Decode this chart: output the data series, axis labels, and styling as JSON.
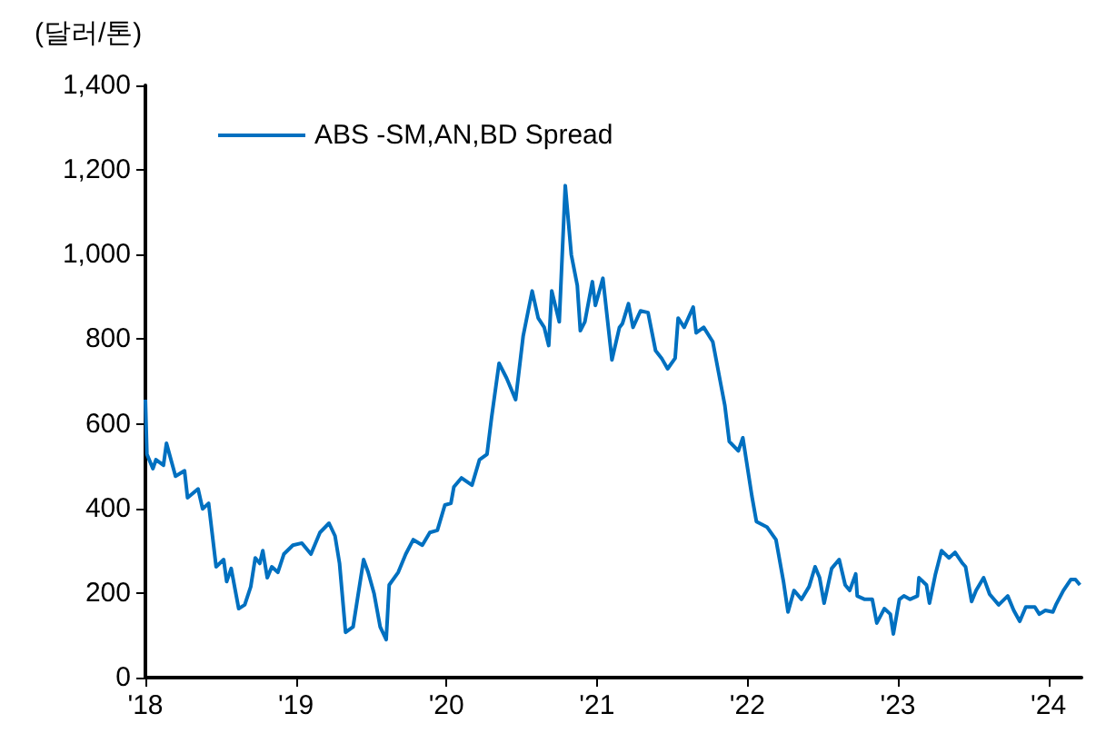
{
  "chart_data": {
    "type": "line",
    "ylabel": "(달러/톤)",
    "legend": "top left",
    "grid": false,
    "marker": "none",
    "line_style": "solid",
    "xlim": [
      2018,
      2024.22
    ],
    "xticks": [
      {
        "value": 2018,
        "label": "'18"
      },
      {
        "value": 2019,
        "label": "'19"
      },
      {
        "value": 2020,
        "label": "'20"
      },
      {
        "value": 2021,
        "label": "'21"
      },
      {
        "value": 2022,
        "label": "'22"
      },
      {
        "value": 2023,
        "label": "'23"
      },
      {
        "value": 2024,
        "label": "'24"
      }
    ],
    "ylim": [
      0,
      1400
    ],
    "yticks": [
      0,
      200,
      400,
      600,
      800,
      {
        "value": 1000,
        "label": "1,000"
      },
      {
        "value": 1200,
        "label": "1,200"
      },
      {
        "value": 1400,
        "label": "1,400"
      }
    ],
    "x": [
      2018.0,
      2018.01,
      2018.05,
      2018.07,
      2018.12,
      2018.14,
      2018.2,
      2018.26,
      2018.28,
      2018.35,
      2018.38,
      2018.42,
      2018.47,
      2018.52,
      2018.54,
      2018.57,
      2018.62,
      2018.66,
      2018.7,
      2018.73,
      2018.76,
      2018.78,
      2018.81,
      2018.84,
      2018.88,
      2018.92,
      2018.98,
      2019.04,
      2019.1,
      2019.16,
      2019.22,
      2019.26,
      2019.29,
      2019.33,
      2019.38,
      2019.45,
      2019.48,
      2019.52,
      2019.56,
      2019.6,
      2019.62,
      2019.68,
      2019.73,
      2019.78,
      2019.84,
      2019.89,
      2019.94,
      2019.99,
      2020.03,
      2020.05,
      2020.1,
      2020.17,
      2020.22,
      2020.27,
      2020.3,
      2020.35,
      2020.4,
      2020.46,
      2020.51,
      2020.57,
      2020.61,
      2020.65,
      2020.68,
      2020.7,
      2020.75,
      2020.79,
      2020.83,
      2020.87,
      2020.89,
      2020.92,
      2020.97,
      2020.99,
      2021.04,
      2021.1,
      2021.15,
      2021.17,
      2021.21,
      2021.24,
      2021.29,
      2021.34,
      2021.39,
      2021.43,
      2021.47,
      2021.52,
      2021.54,
      2021.58,
      2021.64,
      2021.66,
      2021.71,
      2021.77,
      2021.82,
      2021.85,
      2021.88,
      2021.94,
      2021.97,
      2022.03,
      2022.06,
      2022.13,
      2022.19,
      2022.24,
      2022.27,
      2022.31,
      2022.36,
      2022.41,
      2022.45,
      2022.48,
      2022.51,
      2022.56,
      2022.61,
      2022.65,
      2022.68,
      2022.72,
      2022.73,
      2022.78,
      2022.83,
      2022.86,
      2022.91,
      2022.95,
      2022.97,
      2023.01,
      2023.04,
      2023.08,
      2023.13,
      2023.14,
      2023.19,
      2023.21,
      2023.25,
      2023.29,
      2023.34,
      2023.38,
      2023.43,
      2023.45,
      2023.49,
      2023.52,
      2023.57,
      2023.61,
      2023.67,
      2023.73,
      2023.77,
      2023.81,
      2023.85,
      2023.91,
      2023.94,
      2023.98,
      2024.03,
      2024.05,
      2024.1,
      2024.15,
      2024.18,
      2024.21
    ],
    "series": [
      {
        "name": "ABS -SM,AN,BD Spread",
        "color": "#0070c0",
        "values": [
          657,
          528,
          494,
          515,
          502,
          554,
          476,
          489,
          425,
          446,
          399,
          412,
          262,
          279,
          227,
          258,
          163,
          172,
          215,
          283,
          270,
          300,
          236,
          262,
          249,
          292,
          313,
          318,
          292,
          343,
          365,
          335,
          270,
          107,
          120,
          279,
          249,
          198,
          120,
          90,
          219,
          249,
          292,
          326,
          313,
          343,
          348,
          408,
          412,
          451,
          472,
          455,
          515,
          528,
          614,
          743,
          708,
          657,
          807,
          914,
          850,
          828,
          785,
          914,
          841,
          1163,
          1000,
          927,
          820,
          841,
          936,
          880,
          944,
          751,
          828,
          837,
          884,
          828,
          867,
          863,
          773,
          755,
          730,
          755,
          850,
          828,
          876,
          815,
          828,
          794,
          700,
          644,
          558,
          536,
          567,
          429,
          369,
          356,
          326,
          227,
          155,
          206,
          185,
          215,
          262,
          236,
          176,
          258,
          279,
          219,
          206,
          245,
          193,
          185,
          185,
          129,
          163,
          150,
          103,
          185,
          193,
          185,
          193,
          236,
          219,
          176,
          245,
          300,
          283,
          296,
          270,
          262,
          180,
          206,
          236,
          197,
          172,
          193,
          159,
          133,
          167,
          167,
          150,
          159,
          155,
          172,
          206,
          232,
          232,
          219
        ]
      }
    ]
  }
}
